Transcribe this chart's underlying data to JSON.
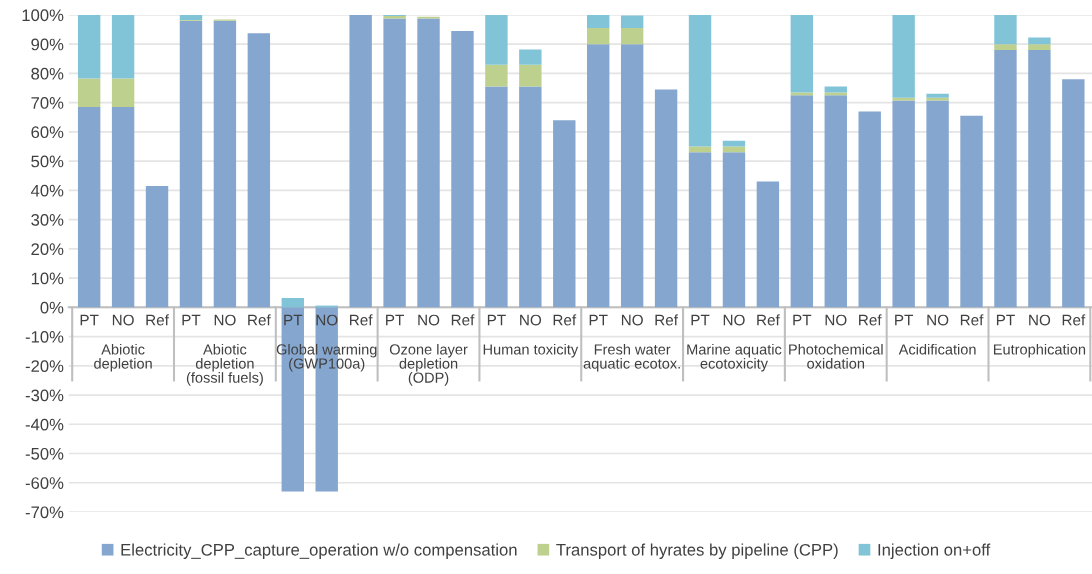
{
  "chart_data": {
    "type": "bar",
    "stacked": true,
    "categories": [
      "PT",
      "NO",
      "Ref",
      "PT",
      "NO",
      "Ref",
      "PT",
      "NO",
      "Ref",
      "PT",
      "NO",
      "Ref",
      "PT",
      "NO",
      "Ref",
      "PT",
      "NO",
      "Ref",
      "PT",
      "NO",
      "Ref",
      "PT",
      "NO",
      "Ref",
      "PT",
      "NO",
      "Ref",
      "PT",
      "NO",
      "Ref"
    ],
    "series": [
      {
        "name": "Electricity_CPP_capture_operation w/o compensation",
        "color": "#84a6cf",
        "values": [
          68.5,
          68.5,
          41.5,
          98,
          98,
          93.7,
          -63,
          -63,
          100,
          98.8,
          98.8,
          94.5,
          75.5,
          75.5,
          64,
          90,
          90,
          74.5,
          53,
          53,
          43,
          72.5,
          72.5,
          67,
          70.7,
          70.7,
          65.5,
          88,
          88,
          78
        ]
      },
      {
        "name": "Transport of hyrates by pipeline (CPP)",
        "color": "#bdd08e",
        "values": [
          9.8,
          9.8,
          0,
          0.3,
          0.4,
          0,
          0,
          0,
          0,
          0.8,
          0.6,
          0,
          7.5,
          7.5,
          0,
          5.5,
          5.5,
          0,
          2,
          2,
          0,
          1,
          1,
          0,
          1,
          1,
          0,
          2,
          2,
          0
        ]
      },
      {
        "name": "Injection on+off",
        "color": "#81c4d7",
        "values": [
          21.7,
          21.7,
          0,
          1.7,
          0,
          0,
          3.2,
          0.6,
          0,
          0.4,
          0,
          0,
          17,
          5.2,
          0,
          4.5,
          4.3,
          0,
          45,
          2,
          0,
          26.5,
          2,
          0,
          28.3,
          1.3,
          0,
          10,
          2.3,
          0
        ]
      }
    ],
    "annotations": [
      "Abiotic\ndepletion",
      "Abiotic\ndepletion\n(fossil fuels)",
      "Global warming\n(GWP100a)",
      "Ozone layer\ndepletion\n(ODP)",
      "Human toxicity",
      "Fresh water\naquatic ecotox.",
      "Marine aquatic\necotoxicity",
      "Photochemical\noxidation",
      "Acidification",
      "Eutrophication"
    ],
    "ylim": [
      -70,
      100
    ],
    "yticks": [
      {
        "value": -70,
        "label": "-70%"
      },
      {
        "value": -60,
        "label": "-60%"
      },
      {
        "value": -50,
        "label": "-50%"
      },
      {
        "value": -40,
        "label": "-40%"
      },
      {
        "value": -30,
        "label": "-30%"
      },
      {
        "value": -20,
        "label": "-20%"
      },
      {
        "value": -10,
        "label": "-10%"
      },
      {
        "value": 0,
        "label": "0%"
      },
      {
        "value": 10,
        "label": "10%"
      },
      {
        "value": 20,
        "label": "20%"
      },
      {
        "value": 30,
        "label": "30%"
      },
      {
        "value": 40,
        "label": "40%"
      },
      {
        "value": 50,
        "label": "50%"
      },
      {
        "value": 60,
        "label": "60%"
      },
      {
        "value": 70,
        "label": "70%"
      },
      {
        "value": 80,
        "label": "80%"
      },
      {
        "value": 90,
        "label": "90%"
      },
      {
        "value": 100,
        "label": "100%"
      }
    ],
    "grid": "y",
    "legend": "bottom"
  }
}
